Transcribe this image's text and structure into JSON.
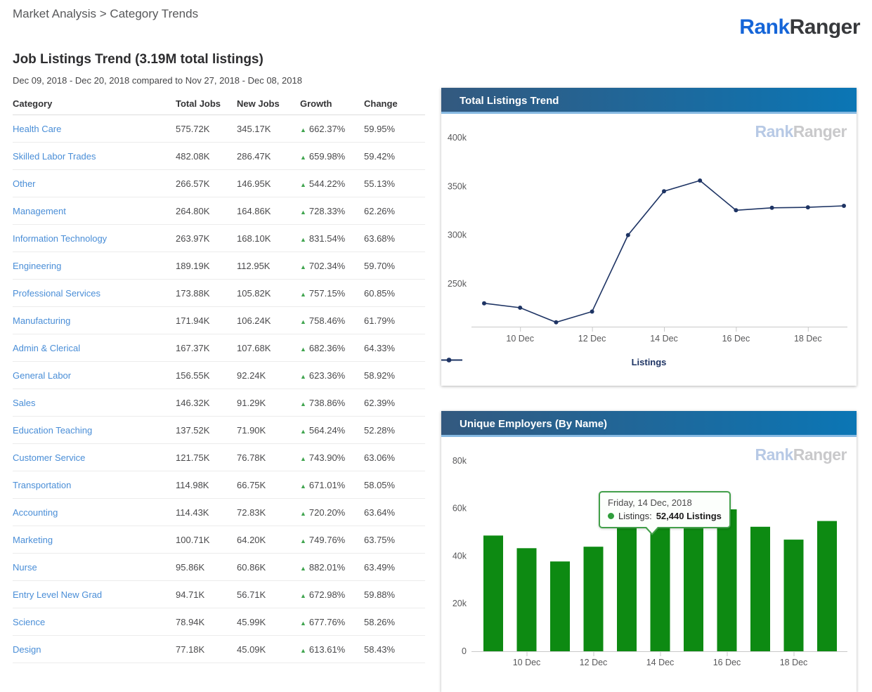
{
  "breadcrumb": "Market Analysis > Category Trends",
  "logo": {
    "part1": "Rank",
    "part2": "Ranger"
  },
  "page": {
    "title": "Job Listings Trend (3.19M total listings)",
    "subtitle": "Dec 09, 2018 - Dec 20, 2018 compared to Nov 27, 2018 - Dec 08, 2018"
  },
  "table": {
    "columns": [
      "Category",
      "Total Jobs",
      "New Jobs",
      "Growth",
      "Change"
    ],
    "growth_arrow": "▲",
    "rows": [
      {
        "category": "Health Care",
        "total_jobs": "575.72K",
        "new_jobs": "345.17K",
        "growth": "662.37%",
        "change": "59.95%"
      },
      {
        "category": "Skilled Labor Trades",
        "total_jobs": "482.08K",
        "new_jobs": "286.47K",
        "growth": "659.98%",
        "change": "59.42%"
      },
      {
        "category": "Other",
        "total_jobs": "266.57K",
        "new_jobs": "146.95K",
        "growth": "544.22%",
        "change": "55.13%"
      },
      {
        "category": "Management",
        "total_jobs": "264.80K",
        "new_jobs": "164.86K",
        "growth": "728.33%",
        "change": "62.26%"
      },
      {
        "category": "Information Technology",
        "total_jobs": "263.97K",
        "new_jobs": "168.10K",
        "growth": "831.54%",
        "change": "63.68%"
      },
      {
        "category": "Engineering",
        "total_jobs": "189.19K",
        "new_jobs": "112.95K",
        "growth": "702.34%",
        "change": "59.70%"
      },
      {
        "category": "Professional Services",
        "total_jobs": "173.88K",
        "new_jobs": "105.82K",
        "growth": "757.15%",
        "change": "60.85%"
      },
      {
        "category": "Manufacturing",
        "total_jobs": "171.94K",
        "new_jobs": "106.24K",
        "growth": "758.46%",
        "change": "61.79%"
      },
      {
        "category": "Admin & Clerical",
        "total_jobs": "167.37K",
        "new_jobs": "107.68K",
        "growth": "682.36%",
        "change": "64.33%"
      },
      {
        "category": "General Labor",
        "total_jobs": "156.55K",
        "new_jobs": "92.24K",
        "growth": "623.36%",
        "change": "58.92%"
      },
      {
        "category": "Sales",
        "total_jobs": "146.32K",
        "new_jobs": "91.29K",
        "growth": "738.86%",
        "change": "62.39%"
      },
      {
        "category": "Education Teaching",
        "total_jobs": "137.52K",
        "new_jobs": "71.90K",
        "growth": "564.24%",
        "change": "52.28%"
      },
      {
        "category": "Customer Service",
        "total_jobs": "121.75K",
        "new_jobs": "76.78K",
        "growth": "743.90%",
        "change": "63.06%"
      },
      {
        "category": "Transportation",
        "total_jobs": "114.98K",
        "new_jobs": "66.75K",
        "growth": "671.01%",
        "change": "58.05%"
      },
      {
        "category": "Accounting",
        "total_jobs": "114.43K",
        "new_jobs": "72.83K",
        "growth": "720.20%",
        "change": "63.64%"
      },
      {
        "category": "Marketing",
        "total_jobs": "100.71K",
        "new_jobs": "64.20K",
        "growth": "749.76%",
        "change": "63.75%"
      },
      {
        "category": "Nurse",
        "total_jobs": "95.86K",
        "new_jobs": "60.86K",
        "growth": "882.01%",
        "change": "63.49%"
      },
      {
        "category": "Entry Level New Grad",
        "total_jobs": "94.71K",
        "new_jobs": "56.71K",
        "growth": "672.98%",
        "change": "59.88%"
      },
      {
        "category": "Science",
        "total_jobs": "78.94K",
        "new_jobs": "45.99K",
        "growth": "677.76%",
        "change": "58.26%"
      },
      {
        "category": "Design",
        "total_jobs": "77.18K",
        "new_jobs": "45.09K",
        "growth": "613.61%",
        "change": "58.43%"
      }
    ]
  },
  "colors": {
    "link_blue": "#4a8ed7",
    "growth_green": "#3fa44e",
    "line_navy": "#1e3464",
    "bar_green": "#0d8a12",
    "axis_line": "#c9c9c9",
    "tick_text": "#58585a",
    "header_gradient_left": "#33597f",
    "header_gradient_right": "#0b76b5",
    "header_border_blue": "#86b9e2",
    "tooltip_border_green": "#42a04a"
  },
  "chart_data": [
    {
      "type": "line",
      "panel_title": "Total Listings Trend",
      "watermark": {
        "part1": "Rank",
        "part2": "Ranger"
      },
      "x": [
        "9 Dec",
        "10 Dec",
        "11 Dec",
        "12 Dec",
        "13 Dec",
        "14 Dec",
        "15 Dec",
        "16 Dec",
        "17 Dec",
        "18 Dec",
        "19 Dec"
      ],
      "series": [
        {
          "name": "Listings",
          "color": "#1e3464",
          "values": [
            230000,
            225500,
            210500,
            221500,
            300000,
            345000,
            356000,
            325500,
            328000,
            328500,
            330000
          ]
        }
      ],
      "x_tick_labels": [
        "10 Dec",
        "12 Dec",
        "14 Dec",
        "16 Dec",
        "18 Dec"
      ],
      "x_tick_indices": [
        1,
        3,
        5,
        7,
        9
      ],
      "yticks": [
        {
          "label": "400k",
          "value": 400000
        },
        {
          "label": "350k",
          "value": 350000
        },
        {
          "label": "300k",
          "value": 300000
        },
        {
          "label": "250k",
          "value": 250000
        }
      ],
      "ylim": [
        206000,
        424500
      ],
      "grid": false,
      "legend": {
        "label": "Listings",
        "position": "bottom-center"
      }
    },
    {
      "type": "bar",
      "panel_title": "Unique Employers (By Name)",
      "watermark": {
        "part1": "Rank",
        "part2": "Ranger"
      },
      "categories": [
        "9 Dec",
        "10 Dec",
        "11 Dec",
        "12 Dec",
        "13 Dec",
        "14 Dec",
        "15 Dec",
        "16 Dec",
        "17 Dec",
        "18 Dec",
        "19 Dec"
      ],
      "values": [
        48600,
        43300,
        37700,
        43900,
        52700,
        52440,
        51600,
        59600,
        52300,
        46900,
        54700
      ],
      "bar_color": "#0d8a12",
      "x_tick_labels": [
        "10 Dec",
        "12 Dec",
        "14 Dec",
        "16 Dec",
        "18 Dec"
      ],
      "x_tick_indices": [
        1,
        3,
        5,
        7,
        9
      ],
      "yticks": [
        {
          "label": "80k",
          "value": 80000
        },
        {
          "label": "60k",
          "value": 60000
        },
        {
          "label": "40k",
          "value": 40000
        },
        {
          "label": "20k",
          "value": 20000
        },
        {
          "label": "0",
          "value": 0
        }
      ],
      "ylim": [
        0,
        90000
      ],
      "grid": false,
      "tooltip": {
        "date": "Friday, 14 Dec, 2018",
        "series_label": "Listings:",
        "value_text": "52,440 Listings",
        "anchor_index": 5
      }
    }
  ]
}
